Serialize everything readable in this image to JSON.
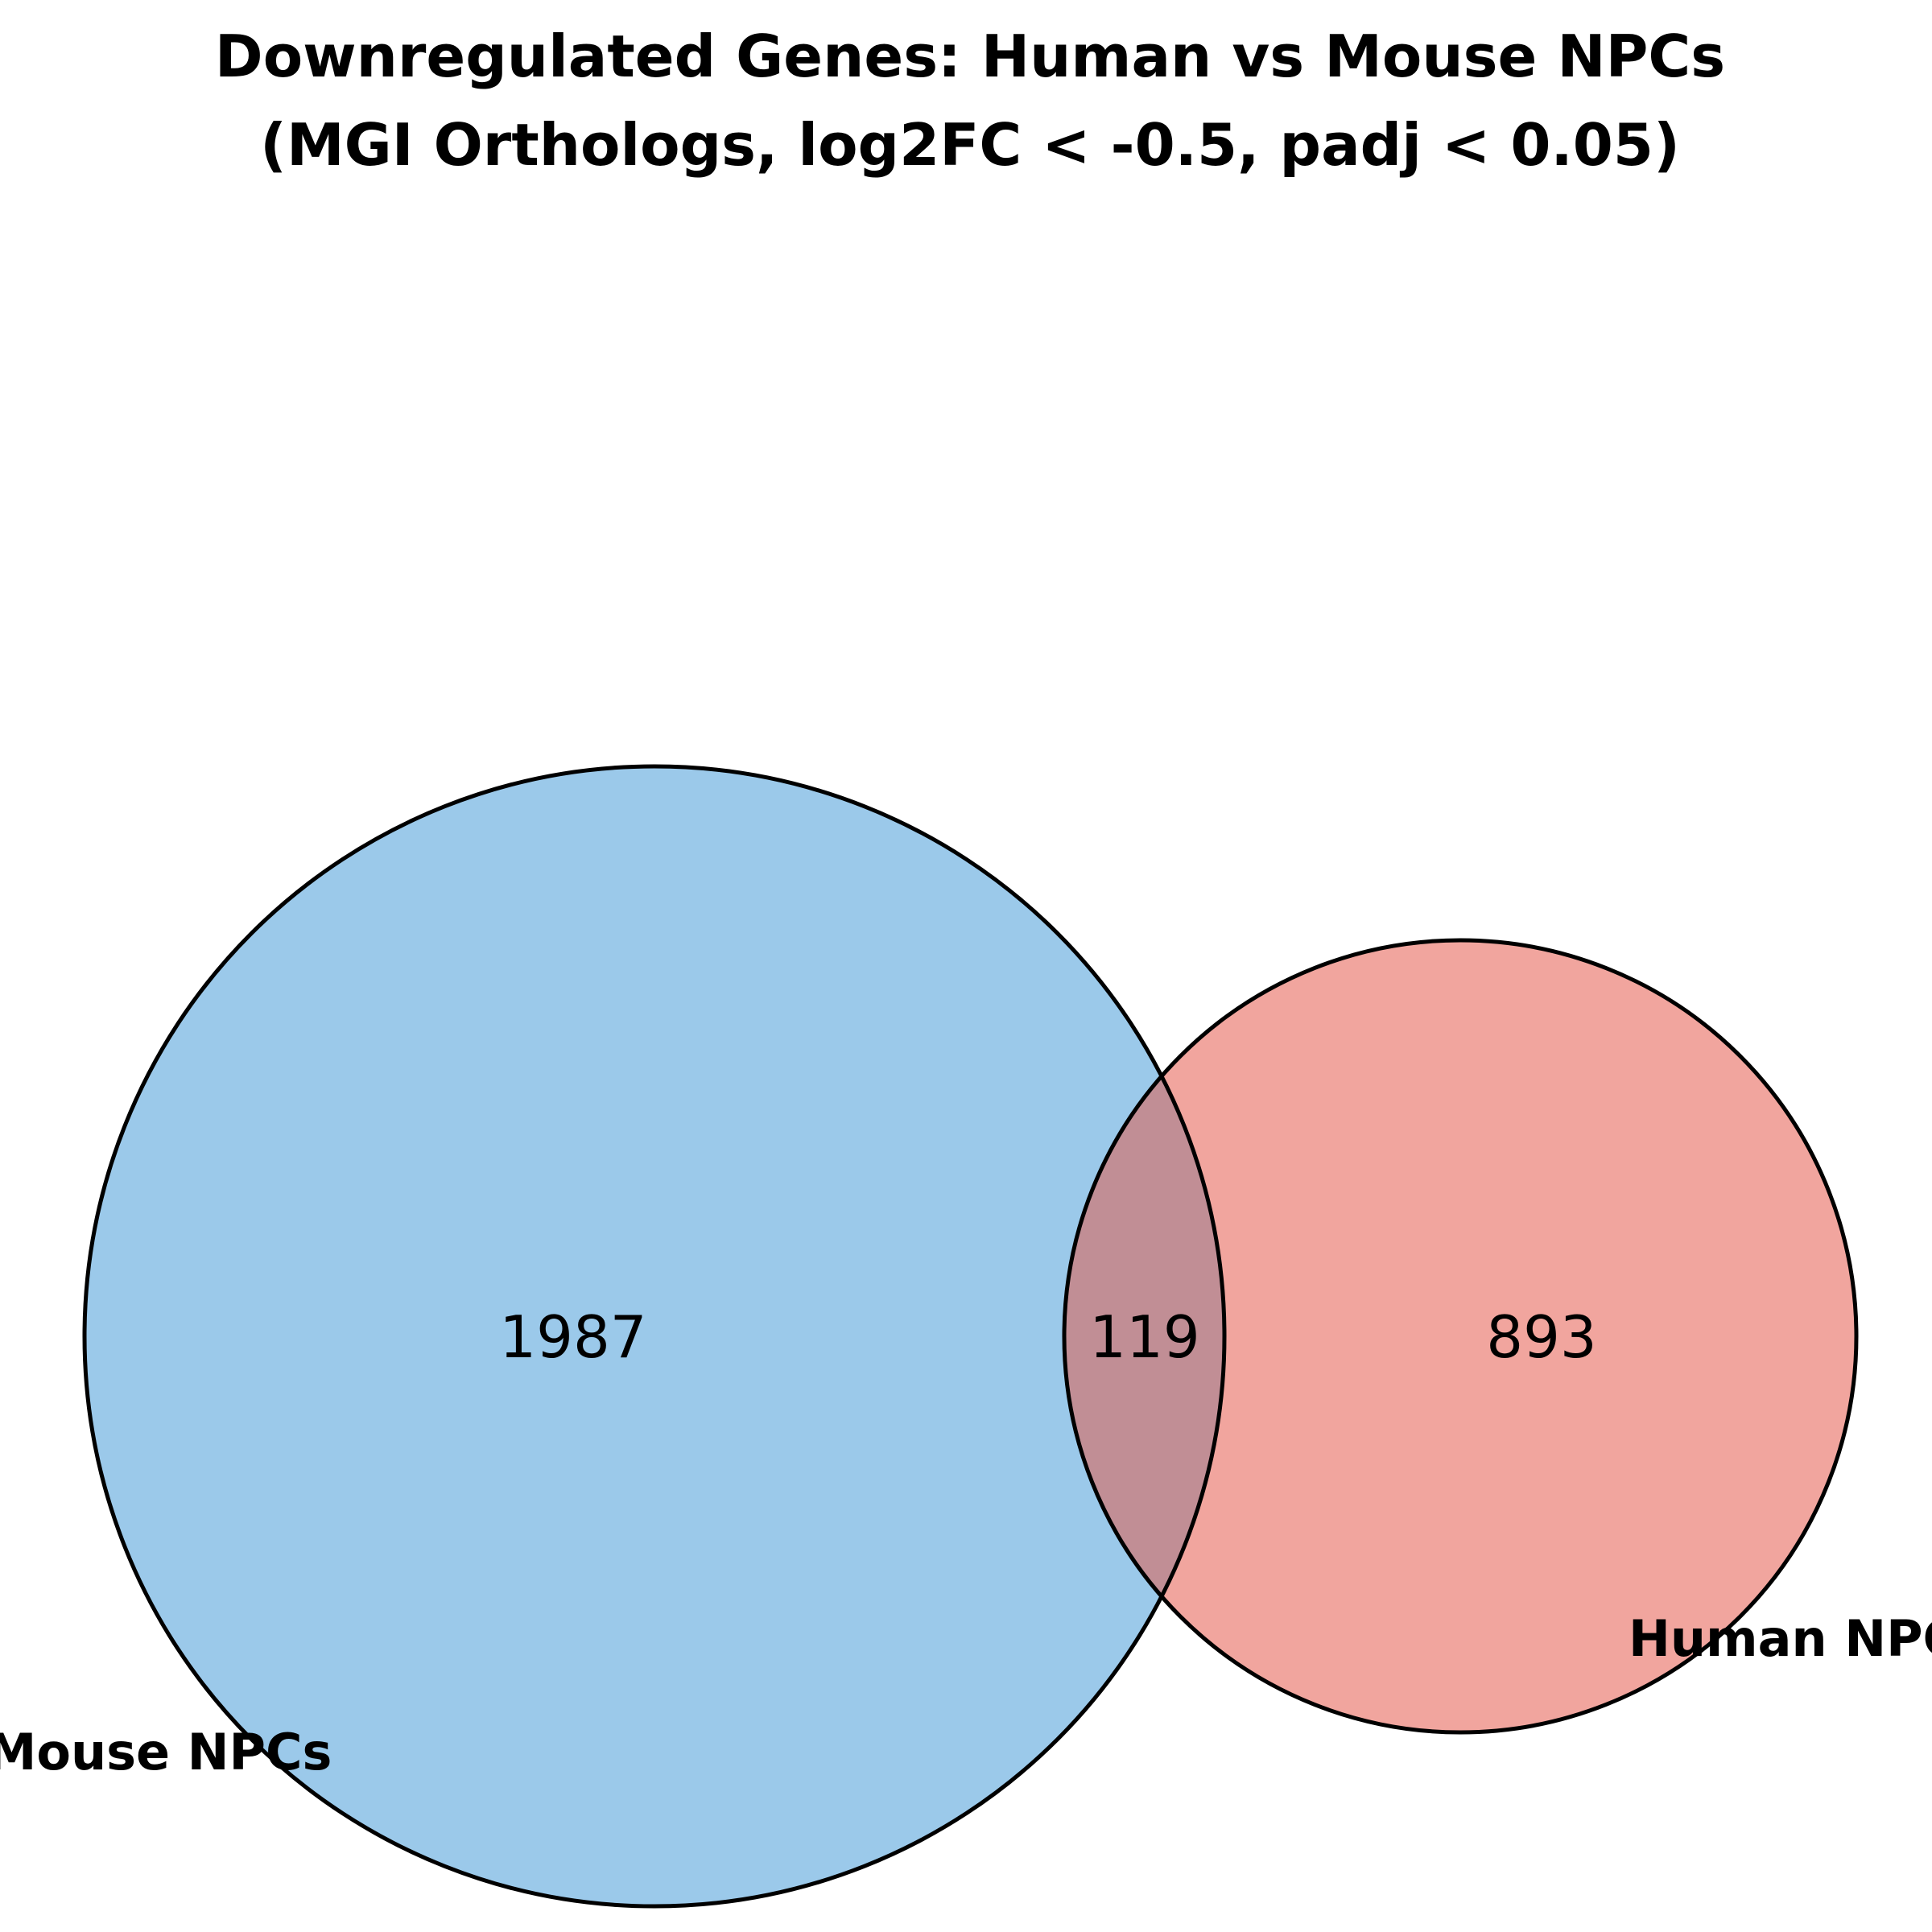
{
  "title": {
    "line1": "Downregulated Genes: Human vs Mouse NPCs",
    "line2": "(MGI Orthologs, log2FC < -0.5, padj < 0.05)"
  },
  "venn": {
    "sets": [
      {
        "key": "mouse",
        "label": "Mouse NPCs",
        "only_count": "1987",
        "color": "#9bc9ea"
      },
      {
        "key": "human",
        "label": "Human NPCs",
        "only_count": "893",
        "color": "#f1a59e"
      }
    ],
    "intersection": {
      "count": "119",
      "color": "#c18e95"
    },
    "outline_color": "#000000"
  }
}
